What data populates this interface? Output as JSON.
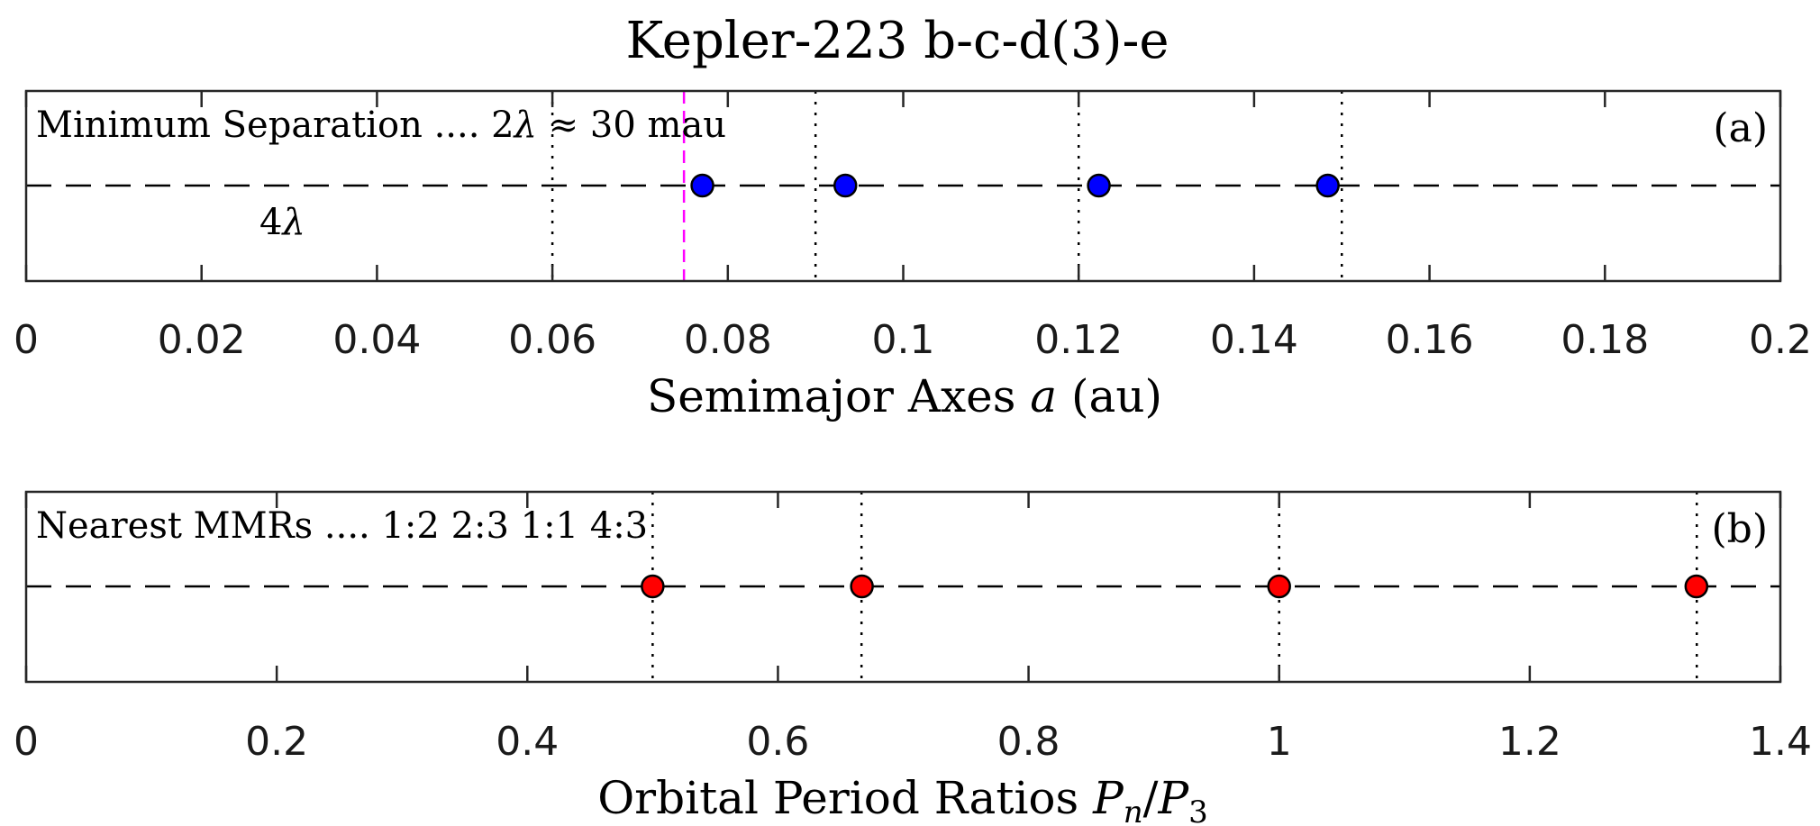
{
  "chart_data": [
    {
      "type": "scatter",
      "panel": "a",
      "title": "Kepler-223   b-c-d(3)-e",
      "panel_tag": "(a)",
      "annotation_line1_prefix": "Minimum Separation ....  2",
      "annotation_line1_suffix": " ≈  30 mau",
      "annotation_line2_prefix": "4",
      "lambda_symbol": "λ",
      "xlabel_prefix": "Semimajor Axes ",
      "xlabel_var": "a",
      "xlabel_suffix": " (au)",
      "xlim": [
        0,
        0.2
      ],
      "xticks": [
        0,
        0.02,
        0.04,
        0.06,
        0.08,
        0.1,
        0.12,
        0.14,
        0.16,
        0.18,
        0.2
      ],
      "xtick_labels": [
        "0",
        "0.02",
        "0.04",
        "0.06",
        "0.08",
        "0.1",
        "0.12",
        "0.14",
        "0.16",
        "0.18",
        "0.2"
      ],
      "reference_y": 0,
      "points_x": [
        0.0771,
        0.0934,
        0.1223,
        0.1484
      ],
      "point_color": "#0000ff",
      "dotted_vlines_x": [
        0.06,
        0.09,
        0.12,
        0.15
      ],
      "dashed_vline_x": 0.075,
      "dashed_vline_color": "#ff00ff"
    },
    {
      "type": "scatter",
      "panel": "b",
      "panel_tag": "(b)",
      "annotation": "Nearest MMRs ....  1:2   2:3   1:1   4:3",
      "xlabel_prefix": "Orbital Period Ratios ",
      "xlabel_var": "P",
      "xlabel_sub1": "n",
      "xlabel_slash": "/",
      "xlabel_sub2": "3",
      "xlim": [
        0,
        1.4
      ],
      "xticks": [
        0,
        0.2,
        0.4,
        0.6,
        0.8,
        1,
        1.2,
        1.4
      ],
      "xtick_labels": [
        "0",
        "0.2",
        "0.4",
        "0.6",
        "0.8",
        "1",
        "1.2",
        "1.4"
      ],
      "reference_y": 0,
      "points_x": [
        0.5,
        0.667,
        1.0,
        1.333
      ],
      "point_color": "#ff0000",
      "dotted_vlines_x": [
        0.5,
        0.6667,
        1.0,
        1.3333
      ]
    }
  ]
}
